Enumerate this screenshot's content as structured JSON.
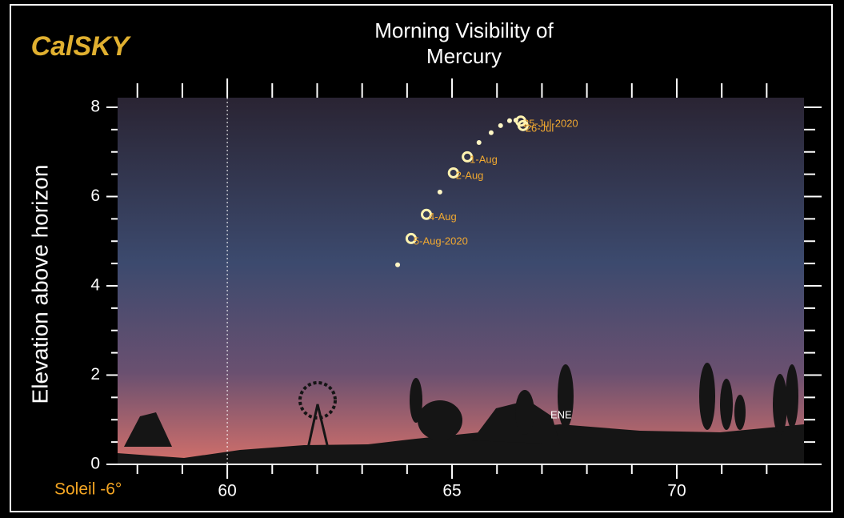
{
  "chart_data": {
    "type": "scatter",
    "title_lines": [
      "Morning  Visibility of",
      "Mercury"
    ],
    "ylabel": "Elevation above horizon",
    "logo": "CalSKY",
    "sun_label": "Soleil -6°",
    "direction_label": "ENE",
    "xlim": [
      57.56,
      72.83
    ],
    "ylim": [
      0,
      8.215
    ],
    "xticks": [
      60,
      65,
      70
    ],
    "xminor_ticks": [
      58,
      59,
      61,
      62,
      63,
      64,
      66,
      67,
      68,
      69,
      71,
      72
    ],
    "yticks": [
      0,
      2,
      4,
      6,
      8
    ],
    "yminor_ticks": [
      0.5,
      1,
      1.5,
      2.5,
      3,
      3.5,
      4.5,
      5,
      5.5,
      6.5,
      7,
      7.5
    ],
    "ref_line_x": 60,
    "dots": {
      "color": "#fff6c4",
      "x": [
        63.79,
        64.73,
        65.6,
        65.87,
        66.08,
        66.28,
        66.42
      ],
      "y": [
        4.47,
        6.1,
        7.21,
        7.43,
        7.59,
        7.7,
        7.71
      ]
    },
    "markers": {
      "color": "#fff3b0",
      "label_color": "#f0a830",
      "x": [
        66.53,
        66.58,
        65.34,
        65.03,
        64.43,
        64.09
      ],
      "y": [
        7.69,
        7.59,
        6.89,
        6.53,
        5.6,
        5.06
      ],
      "labels": [
        "25-Jul-2020",
        "26-Jul",
        "1-Aug",
        "2-Aug",
        "4-Aug",
        "5-Aug-2020"
      ]
    }
  }
}
